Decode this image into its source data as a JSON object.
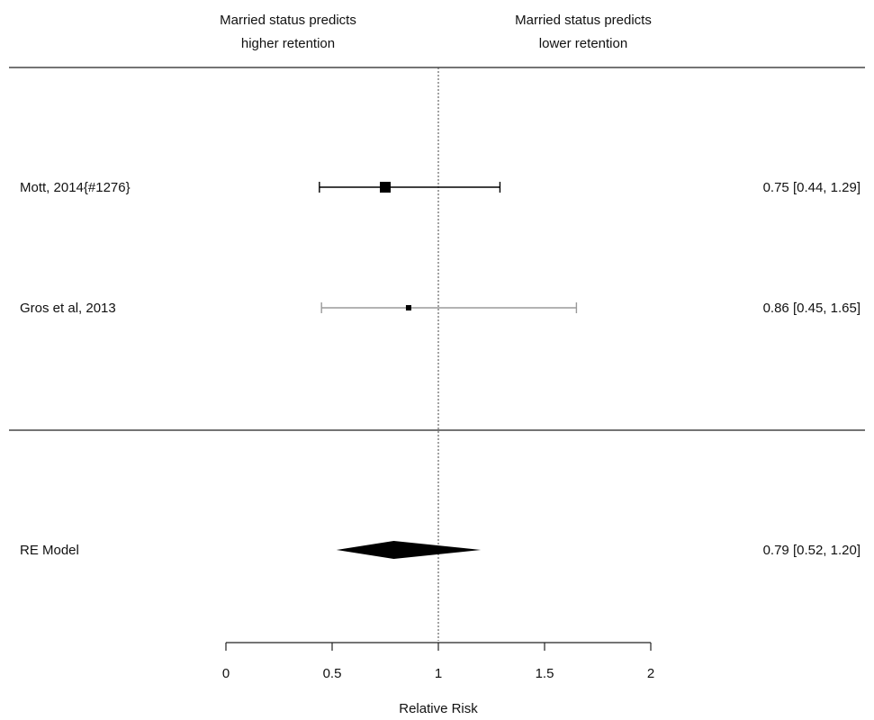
{
  "chart_data": {
    "type": "forest",
    "header_left": [
      "Married status predicts",
      "higher retention"
    ],
    "header_right": [
      "Married status predicts",
      "lower retention"
    ],
    "xlabel": "Relative Risk",
    "xlim": [
      0,
      2
    ],
    "xticks": [
      0,
      0.5,
      1,
      1.5,
      2
    ],
    "xtick_labels": [
      "0",
      "0.5",
      "1",
      "1.5",
      "2"
    ],
    "reference_line": 1,
    "studies": [
      {
        "label": "Mott, 2014{#1276}",
        "estimate": 0.75,
        "lower": 0.44,
        "upper": 1.29,
        "ci_text": "0.75 [0.44, 1.29]",
        "color": "#000000",
        "weight": 1.0
      },
      {
        "label": "Gros et al, 2013",
        "estimate": 0.86,
        "lower": 0.45,
        "upper": 1.65,
        "ci_text": "0.86 [0.45, 1.65]",
        "color": "#9a9a9a",
        "weight": 0.25
      }
    ],
    "summary": {
      "label": "RE Model",
      "estimate": 0.79,
      "lower": 0.52,
      "upper": 1.2,
      "ci_text": "0.79 [0.52, 1.20]",
      "color": "#000000"
    }
  }
}
